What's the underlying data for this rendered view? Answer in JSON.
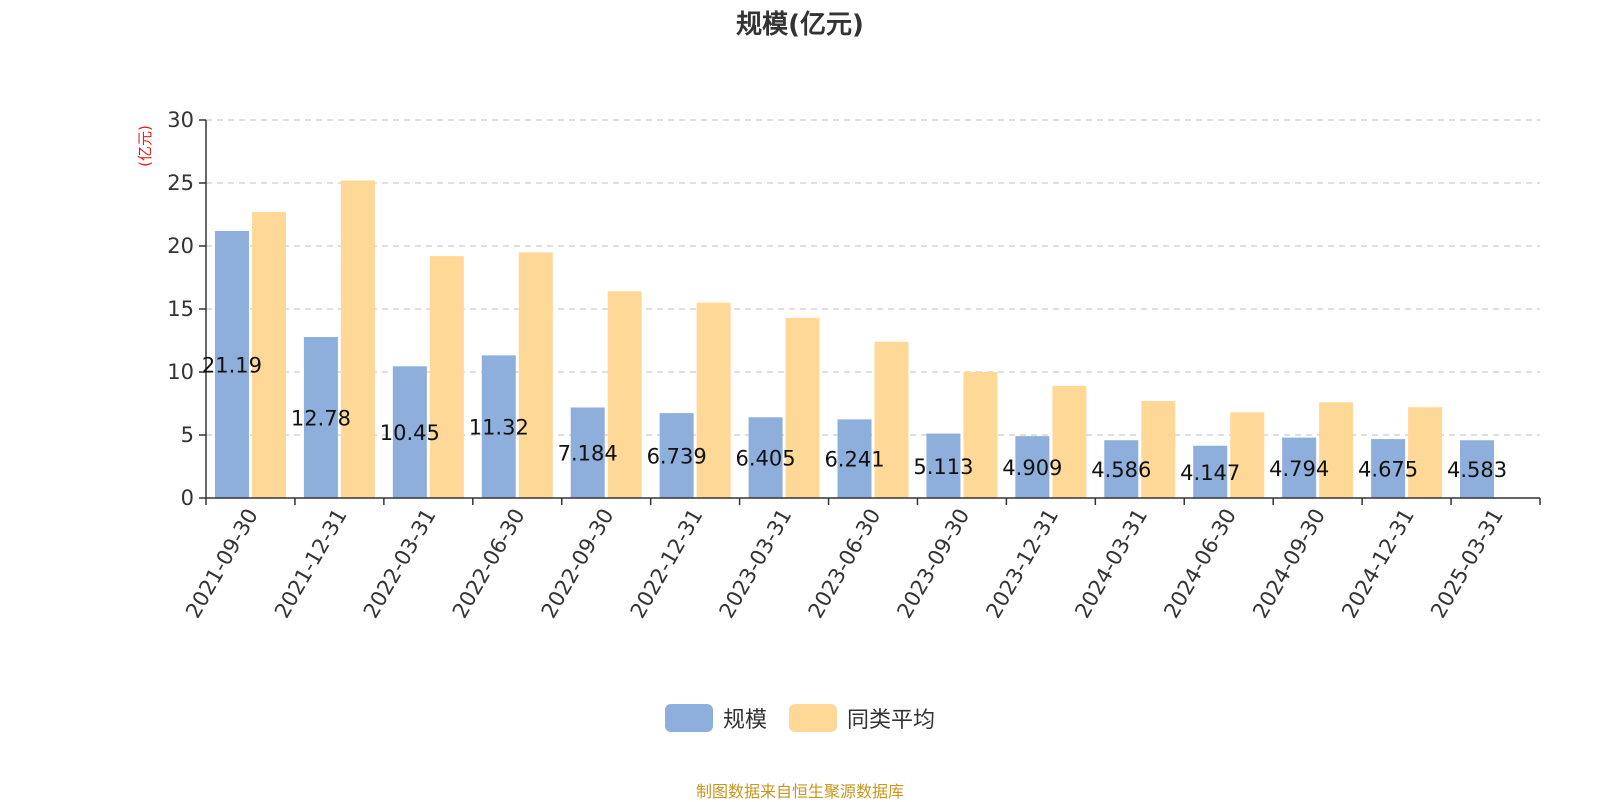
{
  "chart_data": {
    "type": "bar",
    "title": "规模(亿元)",
    "ylabel": "(亿元)",
    "xlabel": "",
    "ylim": [
      0,
      30
    ],
    "yticks": [
      0,
      5,
      10,
      15,
      20,
      25,
      30
    ],
    "grid": true,
    "legend_position": "bottom",
    "categories": [
      "2021-09-30",
      "2021-12-31",
      "2022-03-31",
      "2022-06-30",
      "2022-09-30",
      "2022-12-31",
      "2023-03-31",
      "2023-06-30",
      "2023-09-30",
      "2023-12-31",
      "2024-03-31",
      "2024-06-30",
      "2024-09-30",
      "2024-12-31",
      "2025-03-31"
    ],
    "series": [
      {
        "name": "规模",
        "color": "#8eaedb",
        "values": [
          21.19,
          12.78,
          10.45,
          11.32,
          7.184,
          6.739,
          6.405,
          6.241,
          5.113,
          4.909,
          4.586,
          4.147,
          4.794,
          4.675,
          4.583
        ],
        "labels": [
          "21.19",
          "12.78",
          "10.45",
          "11.32",
          "7.184",
          "6.739",
          "6.405",
          "6.241",
          "5.113",
          "4.909",
          "4.586",
          "4.147",
          "4.794",
          "4.675",
          "4.583"
        ]
      },
      {
        "name": "同类平均",
        "color": "#fed897",
        "values": [
          22.7,
          25.2,
          19.2,
          19.5,
          16.4,
          15.5,
          14.3,
          12.4,
          10.0,
          8.9,
          7.7,
          6.8,
          7.6,
          7.2,
          null
        ]
      }
    ]
  },
  "source_note": "制图数据来自恒生聚源数据库",
  "colors": {
    "axis_label": "#e02020",
    "text": "#333333",
    "grid": "#cccccc",
    "source": "#c8961e"
  }
}
